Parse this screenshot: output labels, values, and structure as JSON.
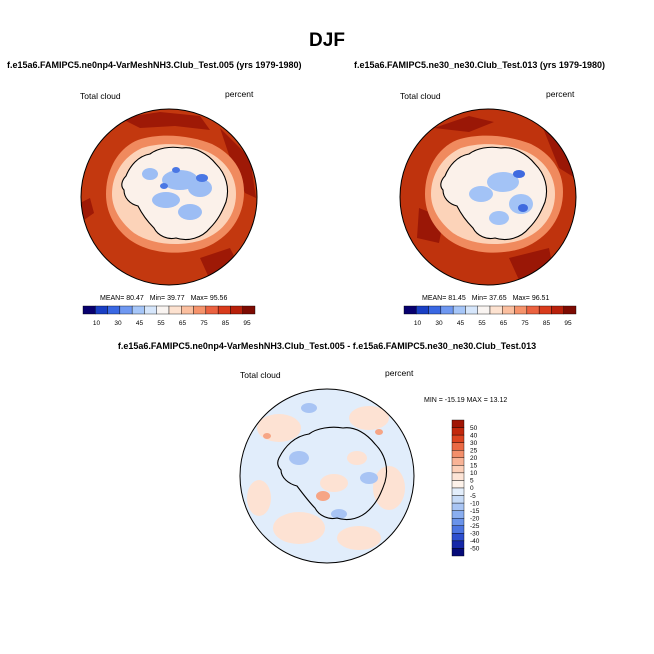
{
  "page_title": "DJF",
  "colors": {
    "ocean_red": "#c0340e",
    "dark_red": "#9e1906",
    "ice_white": "#fbf1ea",
    "coast_line": "#000000"
  },
  "chart_data": [
    {
      "type": "heatmap",
      "title": "f.e15a6.FAMIPC5.ne0np4-VarMeshNH3.Club_Test.005 (yrs 1979-1980)",
      "field_label": "Total cloud",
      "units_label": "percent",
      "stats": {
        "mean_label": "MEAN=",
        "mean": "80.47",
        "min_label": "Min=",
        "min": "39.77",
        "max_label": "Max=",
        "max": "95.56"
      },
      "colorbar": {
        "orientation": "horizontal",
        "tick_labels": [
          "10",
          "30",
          "45",
          "55",
          "65",
          "75",
          "85",
          "95"
        ],
        "colors": [
          "#08006e",
          "#1a3fc4",
          "#3a68e3",
          "#6f98f1",
          "#a6c6f8",
          "#d6e6fb",
          "#f9f4f1",
          "#fde2d0",
          "#fbbf9f",
          "#f6936b",
          "#eb6240",
          "#d93b1c",
          "#b8200b",
          "#7d0b02"
        ]
      }
    },
    {
      "type": "heatmap",
      "title": "f.e15a6.FAMIPC5.ne30_ne30.Club_Test.013 (yrs 1979-1980)",
      "field_label": "Total cloud",
      "units_label": "percent",
      "stats": {
        "mean_label": "MEAN=",
        "mean": "81.45",
        "min_label": "Min=",
        "min": "37.65",
        "max_label": "Max=",
        "max": "96.51"
      },
      "colorbar": {
        "orientation": "horizontal",
        "tick_labels": [
          "10",
          "30",
          "45",
          "55",
          "65",
          "75",
          "85",
          "95"
        ],
        "colors": [
          "#08006e",
          "#1a3fc4",
          "#3a68e3",
          "#6f98f1",
          "#a6c6f8",
          "#d6e6fb",
          "#f9f4f1",
          "#fde2d0",
          "#fbbf9f",
          "#f6936b",
          "#eb6240",
          "#d93b1c",
          "#b8200b",
          "#7d0b02"
        ]
      }
    },
    {
      "type": "heatmap",
      "title": "f.e15a6.FAMIPC5.ne0np4-VarMeshNH3.Club_Test.005 - f.e15a6.FAMIPC5.ne30_ne30.Club_Test.013",
      "field_label": "Total cloud",
      "units_label": "percent",
      "range_text": "MIN = -15.19 MAX =  13.12",
      "colorbar": {
        "orientation": "vertical",
        "tick_labels": [
          "50",
          "40",
          "30",
          "25",
          "20",
          "15",
          "10",
          "5",
          "0",
          "-5",
          "-10",
          "-15",
          "-20",
          "-25",
          "-30",
          "-40",
          "-50"
        ],
        "colors": [
          "#a01605",
          "#c2280c",
          "#dc4420",
          "#ea6a45",
          "#f38f6b",
          "#f8b396",
          "#fccfb8",
          "#fde4d6",
          "#fdf2ea",
          "#e3eefb",
          "#c7dbf7",
          "#a9c5f4",
          "#8aaef0",
          "#6a93ea",
          "#4c75e1",
          "#2d4fcf",
          "#1628a8",
          "#060b78"
        ]
      }
    }
  ]
}
